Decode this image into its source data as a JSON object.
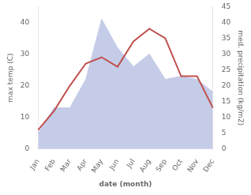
{
  "chart_data": {
    "type": "line",
    "xlabel": "date (month)",
    "ylabel": "max temp (C)",
    "y2label": "med. precipitation (kg/m2)",
    "categories": [
      "Jan",
      "Feb",
      "Mar",
      "Apr",
      "May",
      "Jun",
      "Jul",
      "Aug",
      "Sep",
      "Oct",
      "Nov",
      "Dec"
    ],
    "series": [
      {
        "type": "area",
        "axis": "y2",
        "color": "#c5cce8",
        "values": [
          5,
          13,
          13,
          22,
          41,
          32,
          26,
          30,
          22,
          23,
          22,
          18
        ]
      },
      {
        "type": "line",
        "axis": "y",
        "color": "#c0504d",
        "values": [
          6,
          12,
          20,
          27,
          29,
          26,
          34,
          38,
          35,
          23,
          23,
          13
        ]
      }
    ],
    "ylim": [
      0,
      45
    ],
    "yticks": [
      0,
      10,
      20,
      30,
      40
    ],
    "y2lim": [
      0,
      45
    ],
    "y2ticks": [
      0,
      5,
      10,
      15,
      20,
      25,
      30,
      35,
      40,
      45
    ],
    "grid": false
  }
}
